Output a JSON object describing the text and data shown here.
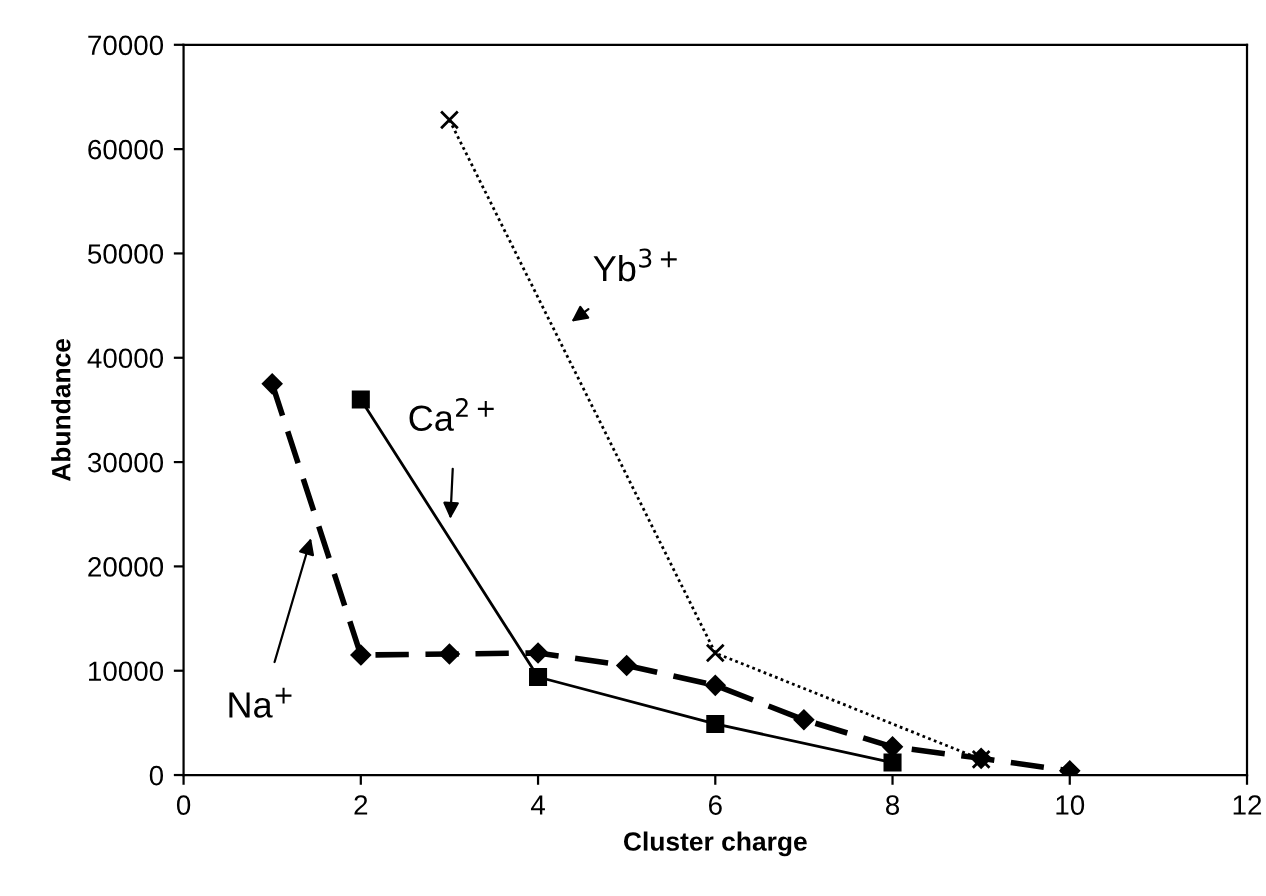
{
  "chart_data": {
    "type": "line",
    "xlabel": "Cluster charge",
    "ylabel": "Abundance",
    "xlim": [
      0,
      12
    ],
    "xticks": [
      0,
      2,
      4,
      6,
      8,
      10,
      12
    ],
    "ylim": [
      0,
      70000
    ],
    "yticks": [
      0,
      10000,
      20000,
      30000,
      40000,
      50000,
      60000,
      70000
    ],
    "grid": false,
    "legend": false,
    "series": [
      {
        "name": "Na$^{+}$",
        "color": "#000000",
        "marker": "diamond",
        "line_style": "dashed",
        "x": [
          1,
          2,
          3,
          4,
          5,
          6,
          7,
          8,
          9,
          10
        ],
        "values": [
          37500,
          11500,
          11600,
          11700,
          10500,
          8600,
          5300,
          2700,
          1600,
          400
        ]
      },
      {
        "name": "Ca$^{2+}$",
        "color": "#000000",
        "marker": "square",
        "line_style": "solid",
        "x": [
          2,
          4,
          6,
          8
        ],
        "values": [
          36000,
          9400,
          4900,
          1200
        ]
      },
      {
        "name": "Yb$^{3+}$",
        "color": "#000000",
        "marker": "cross",
        "line_style": "dotted",
        "x": [
          3,
          6,
          9
        ],
        "values": [
          62800,
          11700,
          1500
        ]
      }
    ]
  }
}
